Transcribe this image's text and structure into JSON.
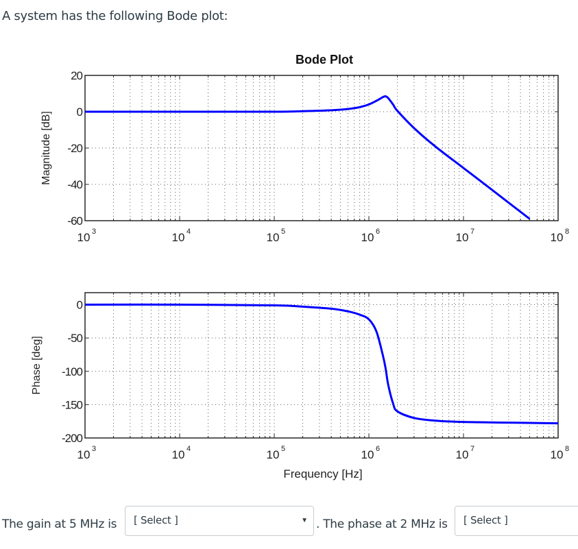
{
  "intro_text": "A system has the following Bode plot:",
  "question": {
    "part1_text": "The gain at 5 MHz is",
    "select1_placeholder": "[ Select ]",
    "part2_text": ". The phase at 2 MHz is",
    "select2_placeholder": "[ Select ]"
  },
  "colors": {
    "curve": "#0000ff",
    "axes": "#262626",
    "grid": "#262626",
    "text": "#2d3b45"
  },
  "chart_data": [
    {
      "type": "line",
      "title": "Bode Plot",
      "xlabel": "",
      "ylabel": "Magnitude   [dB]",
      "xscale": "log",
      "xlim": [
        1000,
        100000000
      ],
      "ylim": [
        -60,
        20
      ],
      "xticks": [
        1000,
        10000,
        100000,
        1000000,
        10000000,
        100000000
      ],
      "xtick_labels": [
        "10^3",
        "10^4",
        "10^5",
        "10^6",
        "10^7",
        "10^8"
      ],
      "yticks": [
        20,
        0,
        -20,
        -40,
        -60
      ],
      "grid": true,
      "series": [
        {
          "name": "Magnitude",
          "x": [
            1000,
            10000,
            100000,
            200000,
            400000,
            600000,
            800000,
            1000000,
            1200000,
            1400000,
            1500000,
            1600000,
            1800000,
            2000000,
            3000000,
            5000000,
            10000000,
            20000000,
            50000000
          ],
          "y": [
            0,
            0,
            0,
            0.3,
            0.8,
            1.5,
            2.5,
            4,
            6,
            8,
            8.5,
            7.5,
            4,
            0.5,
            -9,
            -19,
            -31,
            -43,
            -59
          ]
        }
      ]
    },
    {
      "type": "line",
      "title": "",
      "xlabel": "Frequency   [Hz]",
      "ylabel": "Phase   [deg]",
      "xscale": "log",
      "xlim": [
        1000,
        100000000
      ],
      "ylim": [
        -200,
        18
      ],
      "xticks": [
        1000,
        10000,
        100000,
        1000000,
        10000000,
        100000000
      ],
      "xtick_labels": [
        "10^3",
        "10^4",
        "10^5",
        "10^6",
        "10^7",
        "10^8"
      ],
      "yticks": [
        0,
        -50,
        -100,
        -150,
        -200
      ],
      "grid": true,
      "series": [
        {
          "name": "Phase",
          "x": [
            1000,
            10000,
            100000,
            200000,
            400000,
            600000,
            800000,
            1000000,
            1200000,
            1400000,
            1500000,
            1600000,
            1800000,
            2000000,
            3000000,
            5000000,
            10000000,
            30000000,
            100000000
          ],
          "y": [
            0,
            0,
            -1,
            -3,
            -6,
            -10,
            -15,
            -22,
            -40,
            -75,
            -95,
            -120,
            -148,
            -160,
            -170,
            -174,
            -176,
            -177,
            -178
          ]
        }
      ]
    }
  ]
}
